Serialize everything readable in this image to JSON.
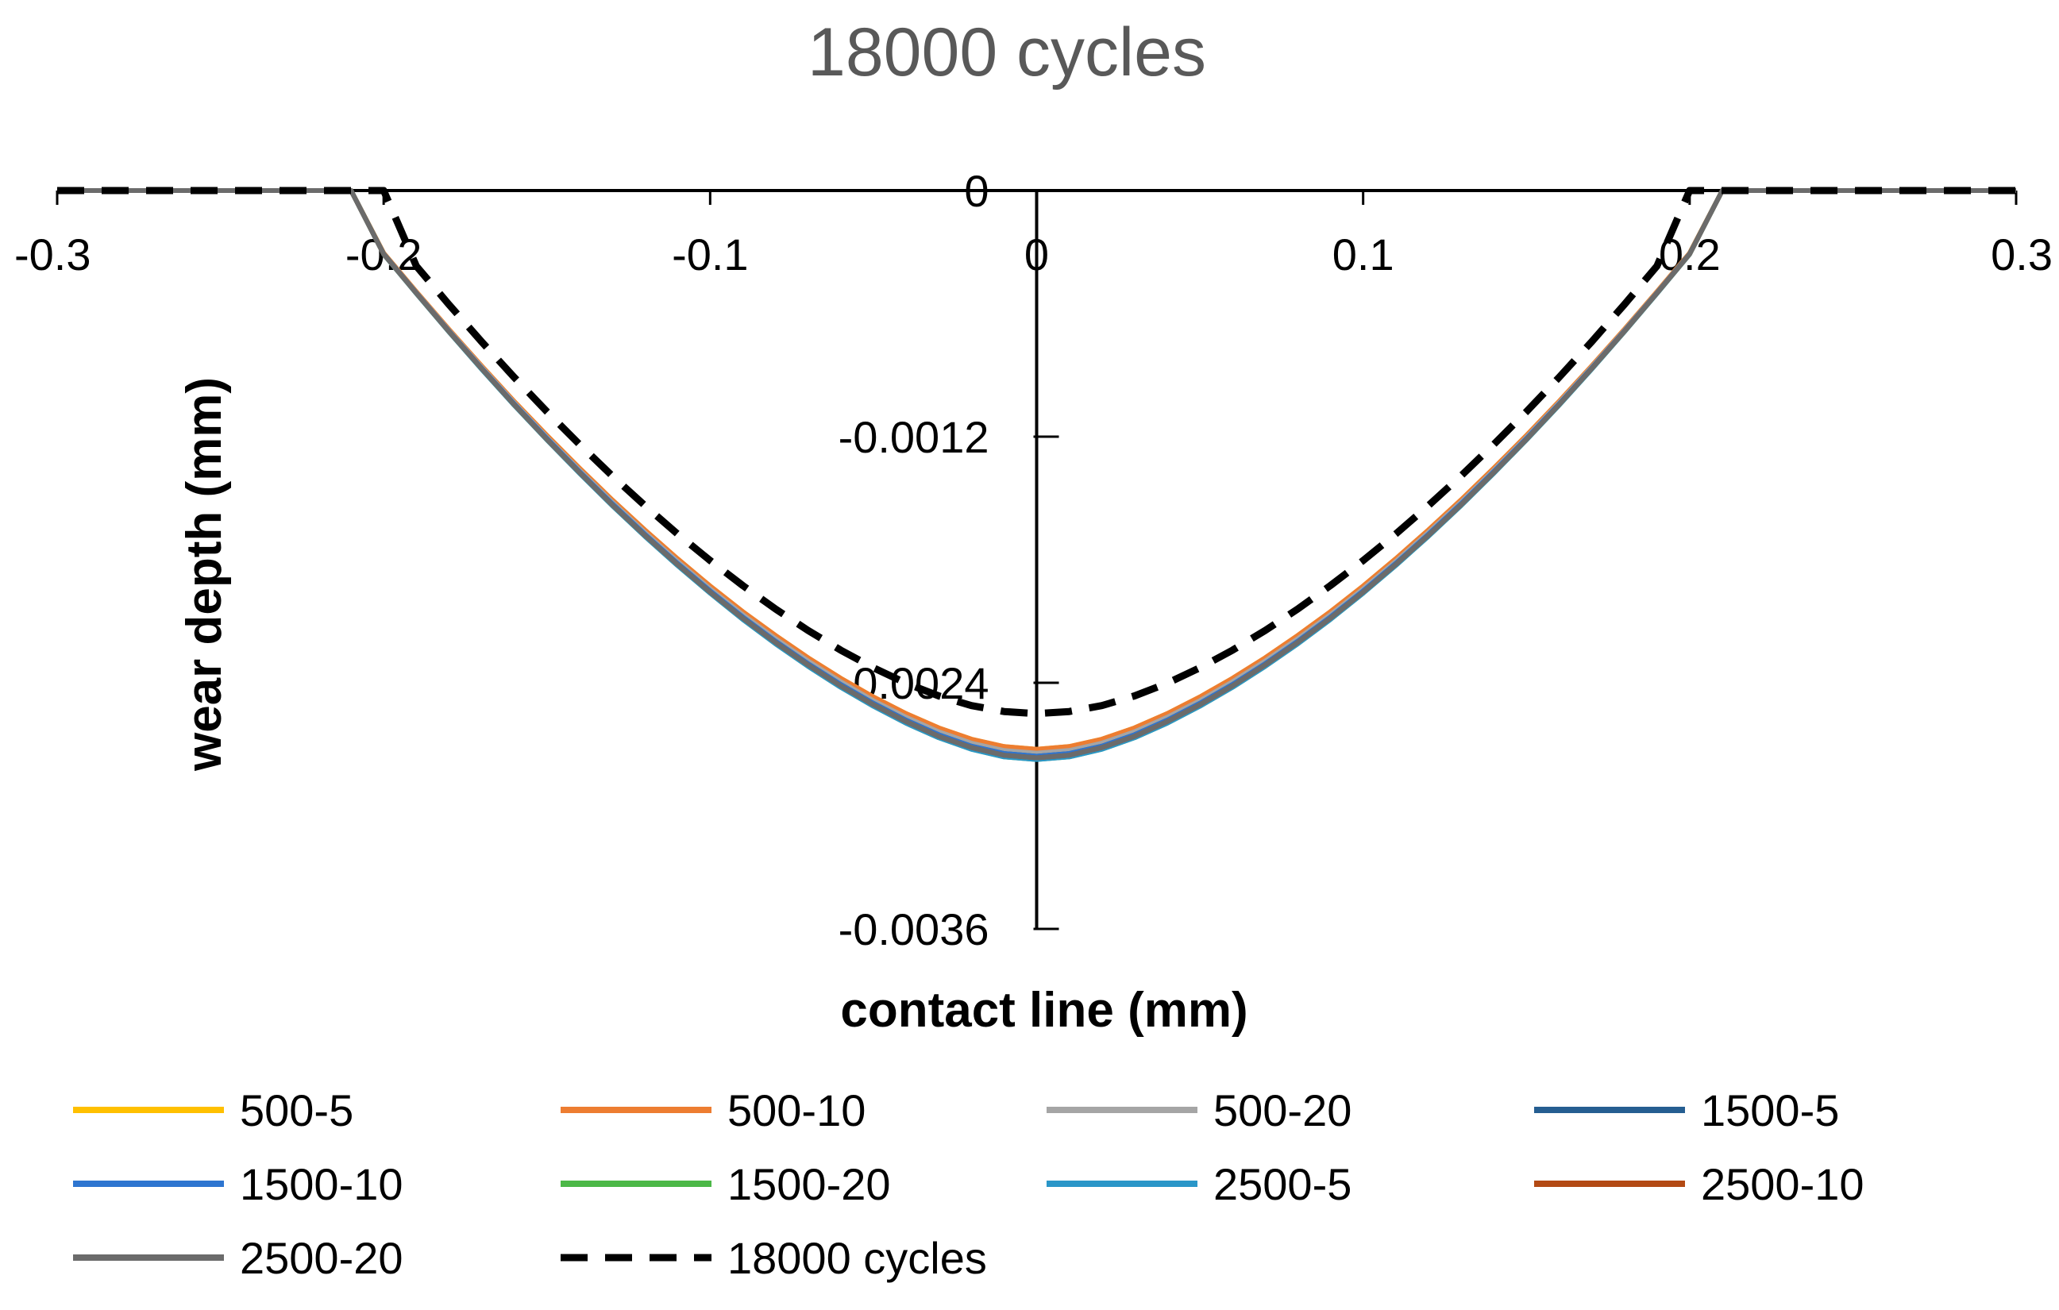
{
  "chart_data": {
    "type": "line",
    "title": "18000 cycles",
    "xlabel": "contact line (mm)",
    "ylabel": "wear depth (mm)",
    "xlim": [
      -0.3,
      0.3
    ],
    "ylim": [
      -0.0036,
      0
    ],
    "xticks": [
      -0.3,
      -0.2,
      -0.1,
      0,
      0.1,
      0.2,
      0.3
    ],
    "xtick_labels": [
      "-0.3",
      "-0.2",
      "-0.1",
      "0",
      "0.1",
      "0.2",
      "0.3"
    ],
    "yticks": [
      0,
      -0.0012,
      -0.0024,
      -0.0036
    ],
    "ytick_labels": [
      "0",
      "-0.0012",
      "-0.0024",
      "-0.0036"
    ],
    "grid": false,
    "legend_position": "bottom",
    "x": [
      -0.3,
      -0.25,
      -0.22,
      -0.21,
      -0.2,
      -0.19,
      -0.18,
      -0.17,
      -0.16,
      -0.15,
      -0.14,
      -0.13,
      -0.12,
      -0.11,
      -0.1,
      -0.09,
      -0.08,
      -0.07,
      -0.06,
      -0.05,
      -0.04,
      -0.03,
      -0.02,
      -0.01,
      0,
      0.01,
      0.02,
      0.03,
      0.04,
      0.05,
      0.06,
      0.07,
      0.08,
      0.09,
      0.1,
      0.11,
      0.12,
      0.13,
      0.14,
      0.15,
      0.16,
      0.17,
      0.18,
      0.19,
      0.2,
      0.21,
      0.22,
      0.25,
      0.3
    ],
    "series": [
      {
        "name": "500-5",
        "color": "#FFC000",
        "dash": false,
        "values": [
          0,
          0,
          0,
          0,
          -0.000305,
          -0.000493,
          -0.000677,
          -0.000855,
          -0.001028,
          -0.001194,
          -0.001354,
          -0.001508,
          -0.001655,
          -0.001795,
          -0.001928,
          -0.002053,
          -0.002169,
          -0.002278,
          -0.002378,
          -0.002469,
          -0.00255,
          -0.00262,
          -0.002675,
          -0.002711,
          -0.002724,
          -0.002711,
          -0.002675,
          -0.00262,
          -0.00255,
          -0.002469,
          -0.002378,
          -0.002278,
          -0.002169,
          -0.002053,
          -0.001928,
          -0.001795,
          -0.001655,
          -0.001508,
          -0.001354,
          -0.001194,
          -0.001028,
          -0.000855,
          -0.000677,
          -0.000493,
          -0.000305,
          0,
          0,
          0,
          0
        ]
      },
      {
        "name": "500-10",
        "color": "#ED7D31",
        "dash": false,
        "values": [
          0,
          0,
          0,
          0,
          -0.000305,
          -0.000493,
          -0.000677,
          -0.000855,
          -0.001028,
          -0.001194,
          -0.001354,
          -0.001508,
          -0.001655,
          -0.001795,
          -0.001928,
          -0.002053,
          -0.002169,
          -0.002278,
          -0.002378,
          -0.002469,
          -0.00255,
          -0.00262,
          -0.002675,
          -0.002711,
          -0.002724,
          -0.002711,
          -0.002675,
          -0.00262,
          -0.00255,
          -0.002469,
          -0.002378,
          -0.002278,
          -0.002169,
          -0.002053,
          -0.001928,
          -0.001795,
          -0.001655,
          -0.001508,
          -0.001354,
          -0.001194,
          -0.001028,
          -0.000855,
          -0.000677,
          -0.000493,
          -0.000305,
          0,
          0,
          0,
          0
        ]
      },
      {
        "name": "500-20",
        "color": "#A5A5A5",
        "dash": false,
        "values": [
          0,
          0,
          0,
          0,
          -0.000308,
          -0.000497,
          -0.000682,
          -0.000861,
          -0.001035,
          -0.001203,
          -0.001364,
          -0.001519,
          -0.001667,
          -0.001808,
          -0.001942,
          -0.002068,
          -0.002185,
          -0.002294,
          -0.002395,
          -0.002487,
          -0.002568,
          -0.002639,
          -0.002694,
          -0.00273,
          -0.002743,
          -0.00273,
          -0.002694,
          -0.002639,
          -0.002568,
          -0.002487,
          -0.002395,
          -0.002294,
          -0.002185,
          -0.002068,
          -0.001942,
          -0.001808,
          -0.001667,
          -0.001519,
          -0.001364,
          -0.001203,
          -0.001035,
          -0.000861,
          -0.000682,
          -0.000497,
          -0.000308,
          0,
          0,
          0,
          0
        ]
      },
      {
        "name": "1500-5",
        "color": "#255E91",
        "dash": false,
        "values": [
          0,
          0,
          0,
          0,
          -0.000309,
          -0.000499,
          -0.000685,
          -0.000866,
          -0.001041,
          -0.001209,
          -0.001371,
          -0.001527,
          -0.001676,
          -0.001818,
          -0.001952,
          -0.002079,
          -0.002197,
          -0.002307,
          -0.002408,
          -0.0025,
          -0.002582,
          -0.002653,
          -0.002709,
          -0.002745,
          -0.002758,
          -0.002745,
          -0.002709,
          -0.002653,
          -0.002582,
          -0.0025,
          -0.002408,
          -0.002307,
          -0.002197,
          -0.002079,
          -0.001952,
          -0.001818,
          -0.001676,
          -0.001527,
          -0.001371,
          -0.001209,
          -0.001041,
          -0.000866,
          -0.000685,
          -0.000499,
          -0.000309,
          0,
          0,
          0,
          0
        ]
      },
      {
        "name": "1500-10",
        "color": "#2E75D0",
        "dash": false,
        "values": [
          0,
          0,
          0,
          0,
          -0.000309,
          -0.000499,
          -0.000685,
          -0.000866,
          -0.001041,
          -0.001209,
          -0.001371,
          -0.001527,
          -0.001676,
          -0.001818,
          -0.001952,
          -0.002079,
          -0.002197,
          -0.002307,
          -0.002408,
          -0.0025,
          -0.002582,
          -0.002653,
          -0.002709,
          -0.002745,
          -0.002758,
          -0.002745,
          -0.002709,
          -0.002653,
          -0.002582,
          -0.0025,
          -0.002408,
          -0.002307,
          -0.002197,
          -0.002079,
          -0.001952,
          -0.001818,
          -0.001676,
          -0.001527,
          -0.001371,
          -0.001209,
          -0.001041,
          -0.000866,
          -0.000685,
          -0.000499,
          -0.000309,
          0,
          0,
          0,
          0
        ]
      },
      {
        "name": "1500-20",
        "color": "#4CB848",
        "dash": false,
        "values": [
          0,
          0,
          0,
          0,
          -0.000311,
          -0.000502,
          -0.000689,
          -0.000871,
          -0.001047,
          -0.001216,
          -0.001379,
          -0.001536,
          -0.001686,
          -0.001828,
          -0.001963,
          -0.002091,
          -0.00221,
          -0.00232,
          -0.002422,
          -0.002514,
          -0.002597,
          -0.002668,
          -0.002724,
          -0.002761,
          -0.002774,
          -0.002761,
          -0.002724,
          -0.002668,
          -0.002597,
          -0.002514,
          -0.002422,
          -0.00232,
          -0.00221,
          -0.002091,
          -0.001963,
          -0.001828,
          -0.001686,
          -0.001536,
          -0.001379,
          -0.001216,
          -0.001047,
          -0.000871,
          -0.000689,
          -0.000502,
          -0.000311,
          0,
          0,
          0,
          0
        ]
      },
      {
        "name": "2500-5",
        "color": "#2A96C8",
        "dash": false,
        "values": [
          0,
          0,
          0,
          0,
          -0.000311,
          -0.000502,
          -0.000689,
          -0.000871,
          -0.001047,
          -0.001216,
          -0.001379,
          -0.001536,
          -0.001686,
          -0.001828,
          -0.001963,
          -0.002091,
          -0.00221,
          -0.00232,
          -0.002422,
          -0.002514,
          -0.002597,
          -0.002668,
          -0.002724,
          -0.002761,
          -0.002774,
          -0.002761,
          -0.002724,
          -0.002668,
          -0.002597,
          -0.002514,
          -0.002422,
          -0.00232,
          -0.00221,
          -0.002091,
          -0.001963,
          -0.001828,
          -0.001686,
          -0.001536,
          -0.001379,
          -0.001216,
          -0.001047,
          -0.000871,
          -0.000689,
          -0.000502,
          -0.000311,
          0,
          0,
          0,
          0
        ]
      },
      {
        "name": "2500-10",
        "color": "#B34A14",
        "dash": false,
        "values": [
          0,
          0,
          0,
          0,
          -0.00031,
          -0.0005,
          -0.000687,
          -0.000868,
          -0.001044,
          -0.001213,
          -0.001375,
          -0.001532,
          -0.001681,
          -0.001823,
          -0.001958,
          -0.002085,
          -0.002203,
          -0.002313,
          -0.002415,
          -0.002507,
          -0.002589,
          -0.002661,
          -0.002716,
          -0.002753,
          -0.002766,
          -0.002753,
          -0.002716,
          -0.002661,
          -0.002589,
          -0.002507,
          -0.002415,
          -0.002313,
          -0.002203,
          -0.002085,
          -0.001958,
          -0.001823,
          -0.001681,
          -0.001532,
          -0.001375,
          -0.001213,
          -0.001044,
          -0.000868,
          -0.000687,
          -0.0005,
          -0.00031,
          0,
          0,
          0,
          0
        ]
      },
      {
        "name": "2500-20",
        "color": "#6B6B6B",
        "dash": false,
        "values": [
          0,
          0,
          0,
          0,
          -0.00031,
          -0.0005,
          -0.000687,
          -0.000868,
          -0.001044,
          -0.001213,
          -0.001375,
          -0.001532,
          -0.001681,
          -0.001823,
          -0.001958,
          -0.002085,
          -0.002203,
          -0.002313,
          -0.002415,
          -0.002507,
          -0.002589,
          -0.002661,
          -0.002716,
          -0.002753,
          -0.002766,
          -0.002753,
          -0.002716,
          -0.002661,
          -0.002589,
          -0.002507,
          -0.002415,
          -0.002313,
          -0.002203,
          -0.002085,
          -0.001958,
          -0.001823,
          -0.001681,
          -0.001532,
          -0.001375,
          -0.001213,
          -0.001044,
          -0.000868,
          -0.000687,
          -0.0005,
          -0.00031,
          0,
          0,
          0,
          0
        ]
      },
      {
        "name": "18000 cycles",
        "color": "#000000",
        "dash": true,
        "values": [
          0,
          0,
          0,
          0,
          0,
          -0.000368,
          -0.000556,
          -0.000737,
          -0.000911,
          -0.001078,
          -0.001238,
          -0.001391,
          -0.001536,
          -0.001674,
          -0.001804,
          -0.001926,
          -0.00204,
          -0.002145,
          -0.002241,
          -0.002327,
          -0.002402,
          -0.002464,
          -0.002511,
          -0.00254,
          -0.00255,
          -0.00254,
          -0.002511,
          -0.002464,
          -0.002402,
          -0.002327,
          -0.002241,
          -0.002145,
          -0.00204,
          -0.001926,
          -0.001804,
          -0.001674,
          -0.001536,
          -0.001391,
          -0.001238,
          -0.001078,
          -0.000911,
          -0.000737,
          -0.000556,
          -0.000368,
          0,
          0,
          0,
          0,
          0
        ]
      }
    ]
  }
}
